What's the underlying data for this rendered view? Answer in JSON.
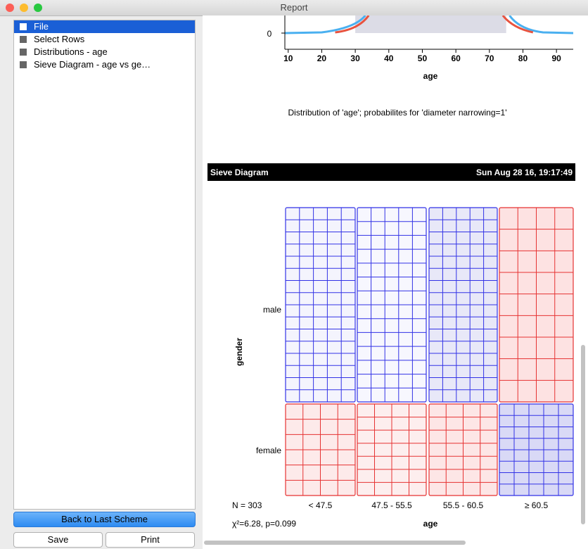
{
  "window": {
    "title": "Report"
  },
  "sidebar": {
    "items": [
      "File",
      "Select Rows",
      "Distributions - age",
      "Sieve Diagram - age vs ge…"
    ],
    "buttons": {
      "back": "Back to Last Scheme",
      "save": "Save",
      "print": "Print"
    }
  },
  "report": {
    "distribution": {
      "xlim": [
        9,
        95
      ],
      "xticks": [
        10,
        20,
        30,
        40,
        50,
        60,
        70,
        80,
        90
      ],
      "yticks": [
        0
      ],
      "xlabel": "age",
      "caption": "Distribution of 'age'; probabilites for 'diameter narrowing=1'"
    },
    "sieve": {
      "header": "Sieve Diagram",
      "date": "Sun Aug 28 16, 19:17:49",
      "rows": [
        "male",
        "female"
      ],
      "columns": [
        "< 47.5",
        "47.5 - 55.5",
        "55.5 - 60.5",
        "≥ 60.5"
      ],
      "ylabel": "gender",
      "xlabel": "age",
      "n": "N = 303",
      "stats": "χ²=6.28, p=0.099"
    }
  }
}
